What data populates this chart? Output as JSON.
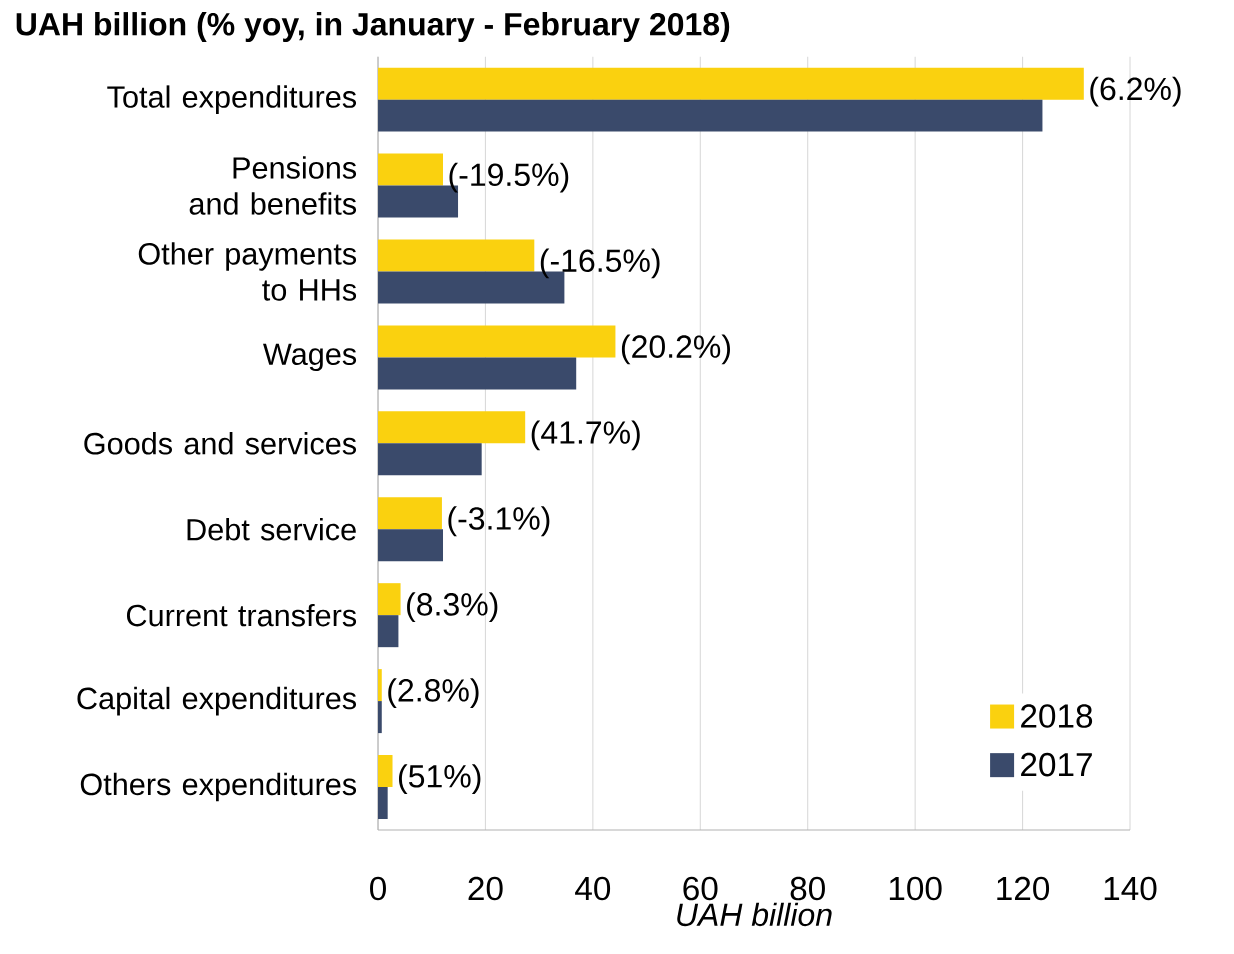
{
  "chart_data": {
    "type": "bar",
    "orientation": "horizontal",
    "title": "UAH billion (% yoy, in January - February 2018)",
    "xlabel": "UAH billion",
    "categories": [
      "Total expenditures",
      "Pensions and benefits",
      "Other payments to HHs",
      "Wages",
      "Goods and services",
      "Debt service",
      "Current transfers",
      "Capital expenditures",
      "Others expenditures"
    ],
    "series": [
      {
        "name": "2018",
        "color": "#fad10f",
        "values": [
          131.4,
          12.1,
          29.1,
          44.2,
          27.4,
          11.9,
          4.2,
          0.7,
          2.7
        ]
      },
      {
        "name": "2017",
        "color": "#3a4a6b",
        "values": [
          123.7,
          14.9,
          34.7,
          36.9,
          19.3,
          12.1,
          3.8,
          0.7,
          1.8
        ]
      }
    ],
    "annotations": [
      {
        "text": "(6.2%)",
        "x": 131.4,
        "y": "Total expenditures"
      },
      {
        "text": "(-19.5%)",
        "x": 12.1,
        "y": "Pensions and benefits"
      },
      {
        "text": "(-16.5%)",
        "x": 29.1,
        "y": "Other payments to HHs"
      },
      {
        "text": "(20.2%)",
        "x": 44.2,
        "y": "Wages"
      },
      {
        "text": "(41.7%)",
        "x": 27.4,
        "y": "Goods and services"
      },
      {
        "text": "(-3.1%)",
        "x": 11.9,
        "y": "Debt service"
      },
      {
        "text": "(8.3%)",
        "x": 4.2,
        "y": "Current transfers"
      },
      {
        "text": "(2.8%)",
        "x": 0.7,
        "y": "Capital expenditures"
      },
      {
        "text": "(51%)",
        "x": 2.7,
        "y": "Others expenditures"
      }
    ],
    "xlim": [
      0,
      140
    ],
    "xticks": [
      0,
      20,
      40,
      60,
      80,
      100,
      120,
      140
    ],
    "grid": "x",
    "legend": "bottom right"
  }
}
